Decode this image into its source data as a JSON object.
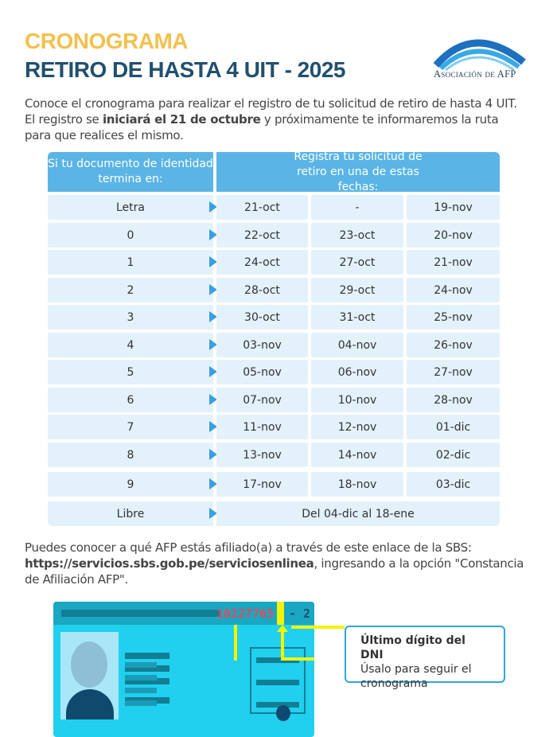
{
  "header": {
    "title": "CRONOGRAMA",
    "subtitle": "RETIRO DE HASTA 4 UIT - 2025",
    "logo_text": "Asociación de AFP"
  },
  "intro": {
    "part1": "Conoce el cronograma para realizar el registro de tu solicitud de retiro de hasta 4 UIT. El registro se ",
    "bold": "iniciará el 21 de octubre",
    "part2": " y próximamente te informaremos la ruta para que realices el mismo."
  },
  "table": {
    "col1_header": "Si tu documento de identidad termina en:",
    "col2_header": "Registra tu solicitud de retiro en una de estas fechas:",
    "rows": [
      {
        "label": "Letra",
        "dates": [
          "21-oct",
          "-",
          "19-nov"
        ]
      },
      {
        "label": "0",
        "dates": [
          "22-oct",
          "23-oct",
          "20-nov"
        ]
      },
      {
        "label": "1",
        "dates": [
          "24-oct",
          "27-oct",
          "21-nov"
        ]
      },
      {
        "label": "2",
        "dates": [
          "28-oct",
          "29-oct",
          "24-nov"
        ]
      },
      {
        "label": "3",
        "dates": [
          "30-oct",
          "31-oct",
          "25-nov"
        ]
      },
      {
        "label": "4",
        "dates": [
          "03-nov",
          "04-nov",
          "26-nov"
        ]
      },
      {
        "label": "5",
        "dates": [
          "05-nov",
          "06-nov",
          "27-nov"
        ]
      },
      {
        "label": "6",
        "dates": [
          "07-nov",
          "10-nov",
          "28-nov"
        ]
      },
      {
        "label": "7",
        "dates": [
          "11-nov",
          "12-nov",
          "01-dic"
        ]
      },
      {
        "label": "8",
        "dates": [
          "13-nov",
          "14-nov",
          "02-dic"
        ]
      },
      {
        "label": "9",
        "dates": [
          "17-nov",
          "18-nov",
          "03-dic"
        ]
      }
    ],
    "libre": {
      "label": "Libre",
      "dates": "Del 04-dic al 18-ene"
    }
  },
  "sbs": {
    "part1": "Puedes conocer a qué AFP estás afiliado(a) a través de este enlace de la SBS: ",
    "link": "https://servicios.sbs.gob.pe/serviciosenlinea",
    "part2": ", ingresando a la opción \"Constancia de Afiliación AFP\"."
  },
  "dni": {
    "number": "1022776",
    "last_digit": "5",
    "check": "- 2"
  },
  "callout": {
    "title": "Último dígito del DNI",
    "text": "Úsalo para seguir el cronograma"
  },
  "colors": {
    "yellow": "#f2c14e",
    "navy": "#21506e",
    "header_blue": "#5ab4e6",
    "row_bg": "#e3f1fb",
    "card": "#20d0ee"
  }
}
